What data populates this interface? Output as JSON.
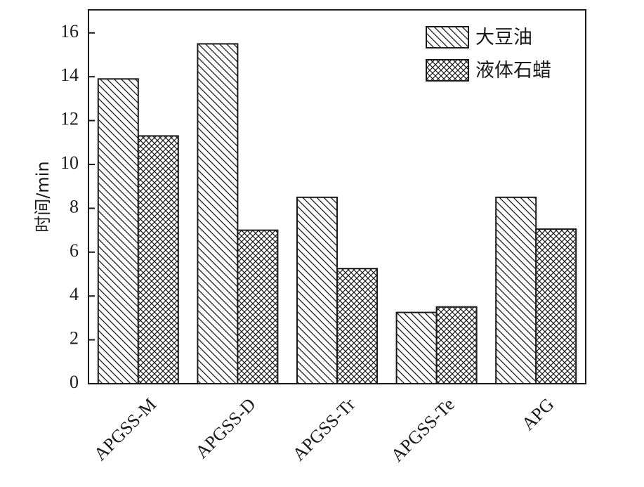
{
  "chart_data": {
    "type": "bar",
    "ylabel": "时间/min",
    "ylim": [
      0,
      17
    ],
    "yticks": [
      0,
      2,
      4,
      6,
      8,
      10,
      12,
      14,
      16
    ],
    "categories": [
      "APGSS-M",
      "APGSS-D",
      "APGSS-Tr",
      "APGSS-Te",
      "APG"
    ],
    "series": [
      {
        "name": "大豆油",
        "pattern": "diagonal-hatch",
        "values": [
          13.9,
          15.5,
          8.5,
          3.25,
          8.5
        ]
      },
      {
        "name": "液体石蜡",
        "pattern": "cross-hatch",
        "values": [
          11.3,
          7.0,
          5.25,
          3.5,
          7.05
        ]
      }
    ],
    "legend_position": "top-right",
    "grid": false,
    "colors": {
      "ink": "#1a1a1a",
      "background": "#ffffff"
    }
  }
}
